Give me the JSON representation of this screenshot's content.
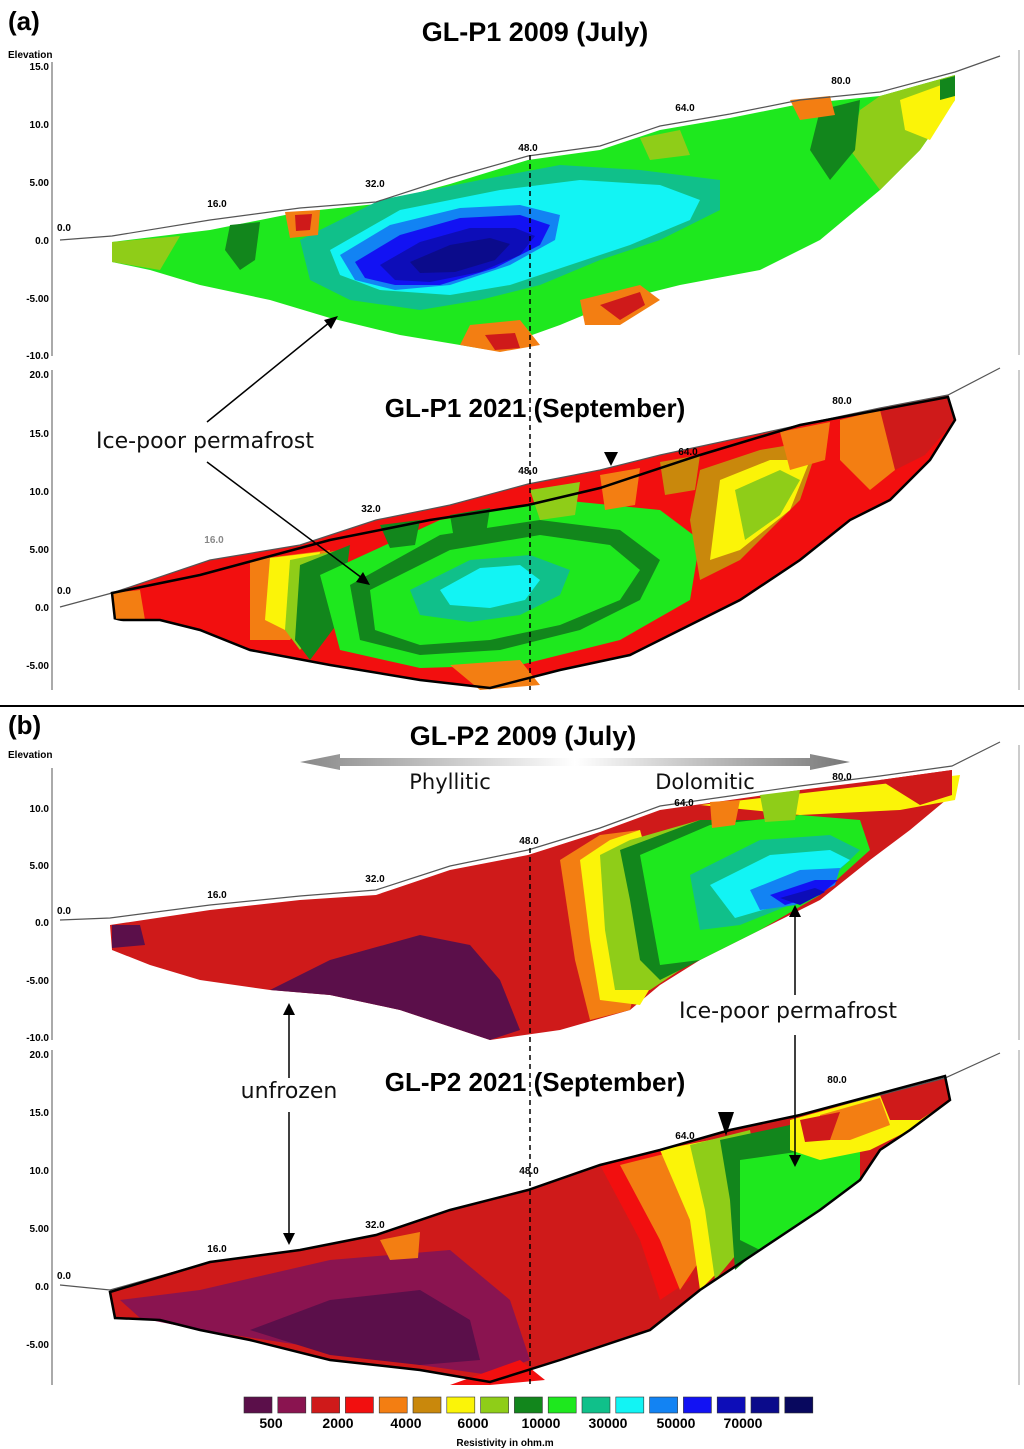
{
  "figure": {
    "panel_a": {
      "letter": "(a)",
      "elevation_label": "Elevation",
      "top_title": "GL-P1 2009 (July)",
      "bottom_title": "GL-P1 2021 (September)",
      "top_yticks": [
        "15.0",
        "10.0",
        "5.00",
        "0.0",
        "-5.00",
        "-10.0"
      ],
      "bottom_yticks": [
        "20.0",
        "15.0",
        "10.0",
        "5.00",
        "0.0",
        "-5.00"
      ],
      "distance_labels": [
        "0.0",
        "16.0",
        "32.0",
        "48.0",
        "64.0",
        "80.0"
      ],
      "annotation": "Ice-poor permafrost"
    },
    "panel_b": {
      "letter": "(b)",
      "elevation_label": "Elevation",
      "top_title": "GL-P2 2009 (July)",
      "bottom_title": "GL-P2 2021 (September)",
      "top_yticks": [
        "10.0",
        "5.00",
        "0.0",
        "-5.00",
        "-10.0"
      ],
      "bottom_yticks": [
        "20.0",
        "15.0",
        "10.0",
        "5.00",
        "0.0",
        "-5.00"
      ],
      "distance_labels": [
        "0.0",
        "16.0",
        "32.0",
        "48.0",
        "64.0",
        "80.0"
      ],
      "lithology_left": "Phyllitic",
      "lithology_right": "Dolomitic",
      "annotation_unfrozen": "unfrozen",
      "annotation_ice": "Ice-poor permafrost"
    },
    "legend": {
      "title": "Resistivity in ohm.m",
      "labels": [
        "500",
        "2000",
        "4000",
        "6000",
        "10000",
        "30000",
        "50000",
        "70000"
      ],
      "colors": [
        "#5b0f4a",
        "#8a1450",
        "#cf1a1a",
        "#f20f0f",
        "#f37e12",
        "#c9880c",
        "#fbf408",
        "#8fcd18",
        "#12861c",
        "#1ee81e",
        "#10c08a",
        "#12f4f4",
        "#1283f3",
        "#1212f3",
        "#0d0db8",
        "#0b0b8b",
        "#08085e"
      ]
    }
  }
}
